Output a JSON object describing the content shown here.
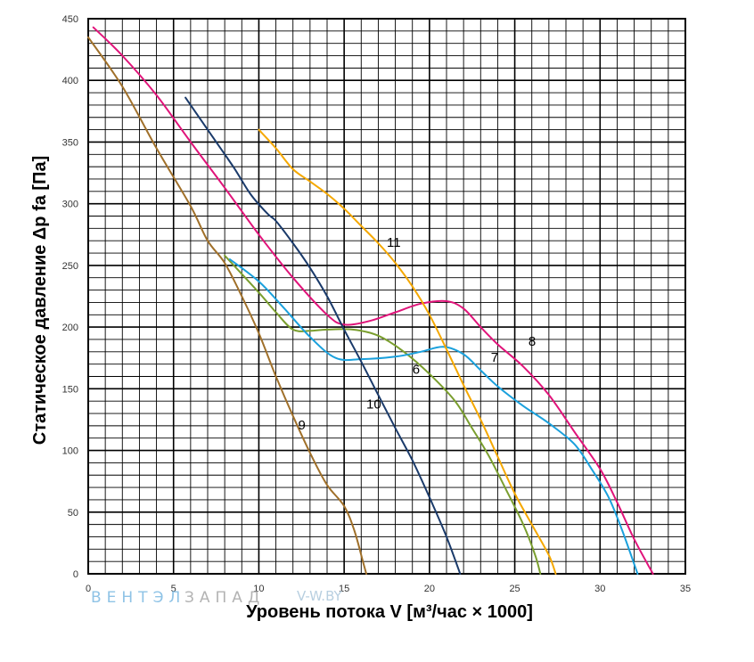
{
  "chart_data": {
    "type": "line",
    "xlabel": "Уровень потока V [м³/час × 1000]",
    "ylabel": "Статическое давление Δp fa [Па]",
    "xlim": [
      0,
      35
    ],
    "ylim": [
      0,
      450
    ],
    "x_ticks": [
      "0",
      "5",
      "10",
      "15",
      "20",
      "25",
      "30",
      "35"
    ],
    "y_ticks": [
      "0",
      "50",
      "100",
      "150",
      "200",
      "250",
      "300",
      "350",
      "400",
      "450"
    ],
    "grid": true,
    "minor_grid": {
      "x_step": 1,
      "y_step": 10
    },
    "series": [
      {
        "name": "9",
        "color": "#a0702a",
        "label_at": [
          12.3,
          117
        ],
        "points": [
          [
            0,
            435
          ],
          [
            2,
            395
          ],
          [
            4,
            345
          ],
          [
            6,
            298
          ],
          [
            7,
            270
          ],
          [
            8,
            252
          ],
          [
            9,
            225
          ],
          [
            10,
            195
          ],
          [
            11,
            160
          ],
          [
            12,
            128
          ],
          [
            13,
            98
          ],
          [
            14,
            72
          ],
          [
            15,
            55
          ],
          [
            15.6,
            35
          ],
          [
            16.1,
            10
          ],
          [
            16.3,
            0
          ]
        ]
      },
      {
        "name": "6",
        "color": "#7a9e2e",
        "label_at": [
          19.0,
          162
        ],
        "points": [
          [
            8,
            258
          ],
          [
            10,
            228
          ],
          [
            11,
            212
          ],
          [
            12,
            198
          ],
          [
            13,
            197
          ],
          [
            14,
            198
          ],
          [
            15.5,
            198
          ],
          [
            17,
            193
          ],
          [
            18.5,
            180
          ],
          [
            20,
            162
          ],
          [
            21.5,
            140
          ],
          [
            22.5,
            118
          ],
          [
            23.5,
            95
          ],
          [
            24.5,
            68
          ],
          [
            25.5,
            40
          ],
          [
            26.2,
            15
          ],
          [
            26.5,
            0
          ]
        ]
      },
      {
        "name": "7",
        "color": "#1aa0dc",
        "label_at": [
          23.6,
          172
        ],
        "points": [
          [
            8.3,
            255
          ],
          [
            10,
            237
          ],
          [
            11.5,
            215
          ],
          [
            13,
            192
          ],
          [
            14.5,
            175
          ],
          [
            16,
            174
          ],
          [
            18,
            176
          ],
          [
            19.5,
            180
          ],
          [
            20.8,
            184
          ],
          [
            22,
            178
          ],
          [
            23,
            165
          ],
          [
            24,
            152
          ],
          [
            25.5,
            136
          ],
          [
            27,
            122
          ],
          [
            28.5,
            105
          ],
          [
            29.5,
            85
          ],
          [
            30.5,
            62
          ],
          [
            31.3,
            35
          ],
          [
            32.2,
            0
          ]
        ]
      },
      {
        "name": "8",
        "color": "#e0147a",
        "label_at": [
          25.8,
          185
        ],
        "points": [
          [
            0.3,
            443
          ],
          [
            2,
            420
          ],
          [
            4,
            388
          ],
          [
            6,
            350
          ],
          [
            8,
            313
          ],
          [
            10,
            275
          ],
          [
            12,
            240
          ],
          [
            14,
            210
          ],
          [
            15,
            202
          ],
          [
            16.5,
            205
          ],
          [
            18,
            212
          ],
          [
            19.5,
            219
          ],
          [
            21,
            221
          ],
          [
            22,
            215
          ],
          [
            23,
            200
          ],
          [
            24,
            186
          ],
          [
            25.5,
            168
          ],
          [
            27,
            145
          ],
          [
            28.5,
            115
          ],
          [
            30,
            85
          ],
          [
            31,
            58
          ],
          [
            32,
            28
          ],
          [
            33.1,
            0
          ]
        ]
      },
      {
        "name": "10",
        "color": "#1a3a6a",
        "label_at": [
          16.3,
          134
        ],
        "points": [
          [
            5.7,
            386
          ],
          [
            7,
            360
          ],
          [
            8.5,
            330
          ],
          [
            9.5,
            308
          ],
          [
            10.5,
            292
          ],
          [
            11,
            286
          ],
          [
            12,
            268
          ],
          [
            13,
            248
          ],
          [
            14,
            225
          ],
          [
            15,
            198
          ],
          [
            16,
            172
          ],
          [
            17,
            145
          ],
          [
            18,
            118
          ],
          [
            19,
            92
          ],
          [
            20,
            62
          ],
          [
            21,
            30
          ],
          [
            21.8,
            0
          ]
        ]
      },
      {
        "name": "11",
        "color": "#f5a800",
        "label_at": [
          17.5,
          265
        ],
        "points": [
          [
            10,
            360
          ],
          [
            11,
            345
          ],
          [
            12,
            328
          ],
          [
            13,
            318
          ],
          [
            14,
            308
          ],
          [
            15,
            296
          ],
          [
            16,
            282
          ],
          [
            17,
            268
          ],
          [
            18,
            252
          ],
          [
            19,
            233
          ],
          [
            20,
            210
          ],
          [
            21,
            182
          ],
          [
            22,
            153
          ],
          [
            23,
            125
          ],
          [
            24,
            95
          ],
          [
            25,
            65
          ],
          [
            26,
            40
          ],
          [
            27,
            15
          ],
          [
            27.4,
            0
          ]
        ]
      }
    ]
  },
  "watermark": {
    "brand_blue": "ВЕНТЭЛ",
    "brand_gray": "ЗАПАД",
    "url": "V-W.BY"
  }
}
